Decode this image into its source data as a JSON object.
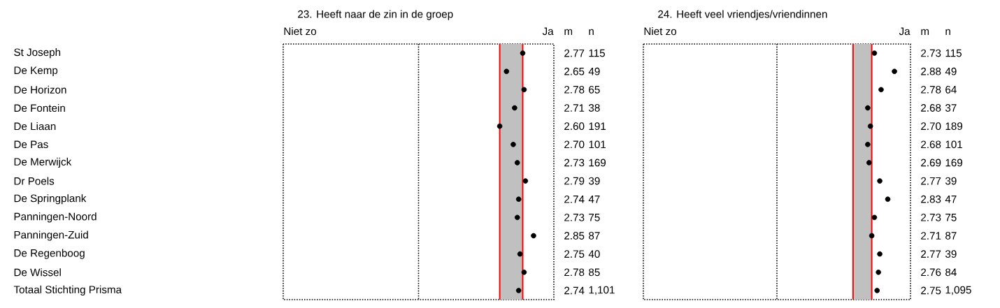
{
  "chart_data": [
    {
      "type": "scatter",
      "title": "23. Heeft naar de zin in de groep",
      "orientation": "horizontal",
      "categories": [
        "St Joseph",
        "De Kemp",
        "De Horizon",
        "De Fontein",
        "De Liaan",
        "De Pas",
        "De Merwijck",
        "Dr Poels",
        "De Springplank",
        "Panningen-Noord",
        "Panningen-Zuid",
        "De Regenboog",
        "De Wissel",
        "Totaal Stichting Prisma"
      ],
      "values": [
        2.77,
        2.65,
        2.78,
        2.71,
        2.6,
        2.7,
        2.73,
        2.79,
        2.74,
        2.73,
        2.85,
        2.75,
        2.78,
        2.74
      ],
      "value_labels": [
        "2.77",
        "2.65",
        "2.78",
        "2.71",
        "2.60",
        "2.70",
        "2.73",
        "2.79",
        "2.74",
        "2.73",
        "2.85",
        "2.75",
        "2.78",
        "2.74"
      ],
      "color": "#000000",
      "marker": "circle",
      "xlim": [
        1,
        3
      ],
      "bands": [
        {
          "axis": "x",
          "from": 2.6,
          "to": 2.77,
          "color": "#c0c0c0"
        }
      ],
      "ref_lines": [
        {
          "axis": "x",
          "value": 2,
          "color": "#000000",
          "line_style": "dotted"
        },
        {
          "axis": "x",
          "value": 2.6,
          "color": "#ff0000"
        },
        {
          "axis": "x",
          "value": 2.77,
          "color": "#ff0000"
        }
      ],
      "annotations": [
        "Niet zo",
        "Ja",
        "m",
        "n",
        "115",
        "49",
        "65",
        "38",
        "191",
        "101",
        "169",
        "39",
        "47",
        "75",
        "87",
        "40",
        "85",
        "1,101"
      ]
    },
    {
      "type": "scatter",
      "title": "24. Heeft veel vriendjes/vriendinnen",
      "orientation": "horizontal",
      "categories": [
        null,
        null,
        null,
        null,
        null,
        null,
        null,
        null,
        null,
        null,
        null,
        null,
        null,
        null
      ],
      "values": [
        2.73,
        2.88,
        2.78,
        2.68,
        2.7,
        2.68,
        2.69,
        2.77,
        2.83,
        2.73,
        2.71,
        2.77,
        2.76,
        2.75
      ],
      "value_labels": [
        "2.73",
        "2.88",
        "2.78",
        "2.68",
        "2.70",
        "2.68",
        "2.69",
        "2.77",
        "2.83",
        "2.73",
        "2.71",
        "2.77",
        "2.76",
        "2.75"
      ],
      "color": "#000000",
      "marker": "circle",
      "xlim": [
        1,
        3
      ],
      "bands": [
        {
          "axis": "x",
          "from": 2.57,
          "to": 2.71,
          "color": "#c0c0c0"
        }
      ],
      "ref_lines": [
        {
          "axis": "x",
          "value": 2,
          "color": "#000000",
          "line_style": "dotted"
        },
        {
          "axis": "x",
          "value": 2.57,
          "color": "#ff0000"
        },
        {
          "axis": "x",
          "value": 2.71,
          "color": "#ff0000"
        }
      ],
      "annotations": [
        "Niet zo",
        "Ja",
        "m",
        "n",
        "115",
        "49",
        "64",
        "37",
        "189",
        "101",
        "169",
        "39",
        "47",
        "75",
        "87",
        "39",
        "84",
        "1,095"
      ]
    }
  ]
}
